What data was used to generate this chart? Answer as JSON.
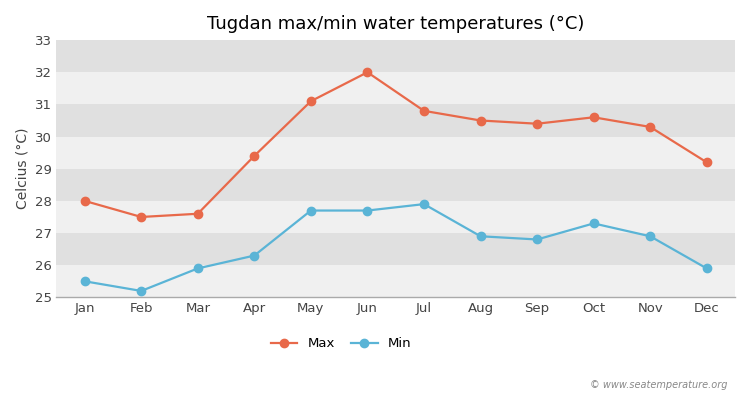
{
  "title": "Tugdan max/min water temperatures (°C)",
  "xlabel": "",
  "ylabel": "Celcius (°C)",
  "months": [
    "Jan",
    "Feb",
    "Mar",
    "Apr",
    "May",
    "Jun",
    "Jul",
    "Aug",
    "Sep",
    "Oct",
    "Nov",
    "Dec"
  ],
  "max_temps": [
    28.0,
    27.5,
    27.6,
    29.4,
    31.1,
    32.0,
    30.8,
    30.5,
    30.4,
    30.6,
    30.3,
    29.2
  ],
  "min_temps": [
    25.5,
    25.2,
    25.9,
    26.3,
    27.7,
    27.7,
    27.9,
    26.9,
    26.8,
    27.3,
    26.9,
    25.9
  ],
  "max_color": "#e8694a",
  "min_color": "#5ab4d6",
  "bg_color": "#ffffff",
  "plot_bg_color_light": "#f0f0f0",
  "plot_bg_color_dark": "#e0e0e0",
  "ylim": [
    25,
    33
  ],
  "yticks": [
    25,
    26,
    27,
    28,
    29,
    30,
    31,
    32,
    33
  ],
  "legend_labels": [
    "Max",
    "Min"
  ],
  "watermark": "© www.seatemperature.org",
  "title_fontsize": 13,
  "axis_label_fontsize": 10,
  "tick_fontsize": 9.5
}
